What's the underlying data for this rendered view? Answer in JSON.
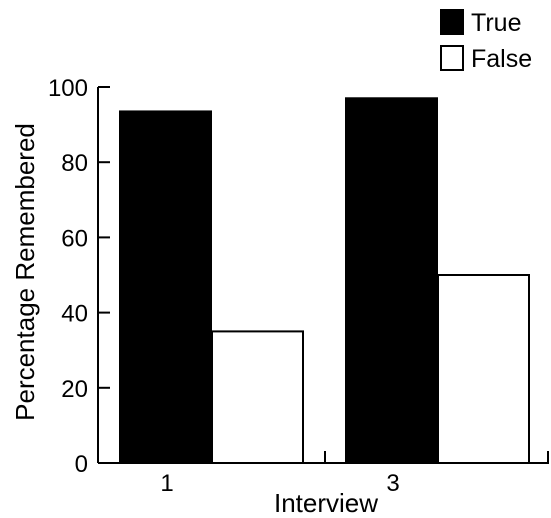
{
  "chart_data": {
    "type": "bar",
    "categories": [
      "1",
      "3"
    ],
    "series": [
      {
        "name": "True",
        "values": [
          93.5,
          97
        ],
        "color": "#000000"
      },
      {
        "name": "False",
        "values": [
          35,
          50
        ],
        "color": "#ffffff"
      }
    ],
    "title": "",
    "xlabel": "Interview",
    "ylabel": "Percentage Remembered",
    "ylim": [
      0,
      100
    ],
    "yticks": [
      "0",
      "20",
      "40",
      "60",
      "80",
      "100"
    ],
    "grid": false,
    "legend_position": "top-right"
  }
}
